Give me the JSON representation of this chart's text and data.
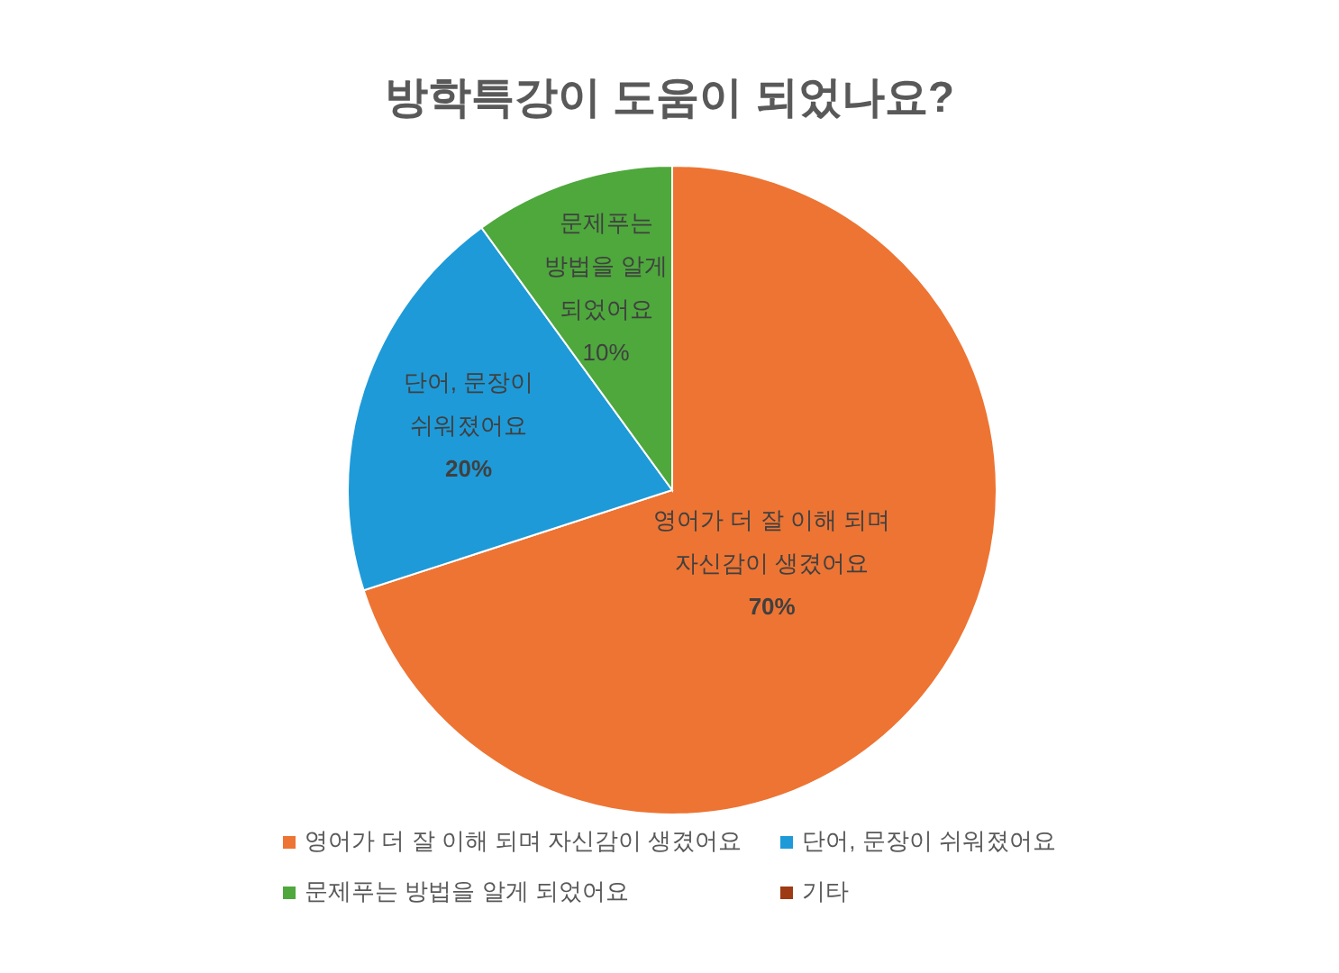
{
  "chart_data": {
    "type": "pie",
    "title": "방학특강이 도움이 되었나요?",
    "categories": [
      "영어가 더 잘 이해 되며 자신감이 생겼어요",
      "단어, 문장이 쉬워졌어요",
      "문제푸는 방법을 알게 되었어요",
      "기타"
    ],
    "values": [
      70,
      20,
      10,
      0
    ],
    "colors": [
      "#ed7433",
      "#1e9ad8",
      "#4ea83c",
      "#9e3a14"
    ],
    "value_labels": [
      "70%",
      "20%",
      "10%",
      null
    ],
    "legend": "bottom"
  }
}
